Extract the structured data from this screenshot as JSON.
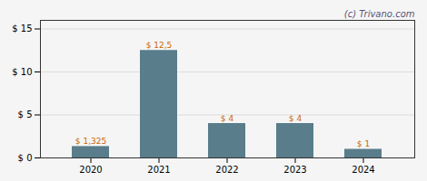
{
  "chart_data": {
    "type": "bar",
    "categories": [
      "2020",
      "2021",
      "2022",
      "2023",
      "2024"
    ],
    "values": [
      1.325,
      12.5,
      4.0,
      4.0,
      1.0
    ],
    "value_labels": [
      "$ 1,325",
      "$ 12,5",
      "$ 4",
      "$ 4",
      "$ 1"
    ],
    "data_labels": true,
    "color": "#597d8a",
    "ylim": [
      0,
      16.0
    ],
    "yticks": [
      {
        "value": 0,
        "label": "$ 0"
      },
      {
        "value": 5,
        "label": "$ 5"
      },
      {
        "value": 10,
        "label": "$ 10"
      },
      {
        "value": 15,
        "label": "$ 15"
      }
    ],
    "grid": true,
    "annotations": [
      "(c) Trivano.com"
    ]
  }
}
